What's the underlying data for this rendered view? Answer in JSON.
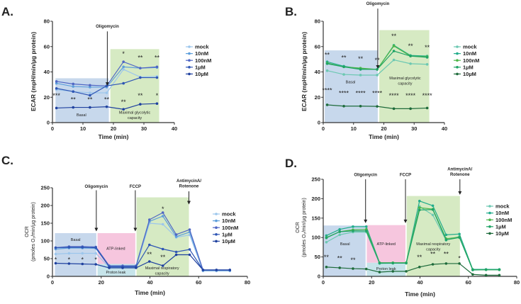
{
  "chart_data": [
    {
      "panel": "A.",
      "type": "line",
      "xlabel": "Time (min)",
      "ylabel": "ECAR (mpH/min/µg protein)",
      "xlim": [
        0,
        40
      ],
      "ylim": [
        0,
        80
      ],
      "xticks": [
        0,
        10,
        20,
        30,
        40
      ],
      "yticks": [
        0,
        20,
        40,
        60,
        80
      ],
      "legend": "right",
      "x": [
        1.3,
        6.8,
        12.3,
        17.8,
        23.3,
        28.8,
        34.3
      ],
      "series": [
        {
          "name": "mock",
          "color": "#9cc6ec",
          "values": [
            26,
            24.5,
            23.5,
            23.5,
            42,
            36,
            36.5
          ]
        },
        {
          "name": "10nM",
          "color": "#5d9edb",
          "values": [
            31,
            28.5,
            28,
            28,
            44,
            43,
            43.5
          ]
        },
        {
          "name": "100nM",
          "color": "#4f66c4",
          "values": [
            32.5,
            30.5,
            29.5,
            29,
            48,
            43,
            44
          ]
        },
        {
          "name": "1µM",
          "color": "#2e55b4",
          "values": [
            27,
            24.5,
            21.5,
            29,
            31,
            35.5,
            35.5
          ]
        },
        {
          "name": "10µM",
          "color": "#1f419f",
          "values": [
            11.5,
            12,
            12,
            12.5,
            10.5,
            14.5,
            15
          ]
        }
      ],
      "regions": [
        {
          "label": [
            "Basal"
          ],
          "x": [
            1,
            18.5
          ],
          "y": [
            0,
            35
          ],
          "color": "#c7d8ec",
          "lx": 9.5,
          "ly": 5
        },
        {
          "label": [
            "Maximal glycolytic",
            "capacity"
          ],
          "x": [
            19,
            35
          ],
          "y": [
            0,
            58
          ],
          "color": "#d6eac3",
          "lx": 27,
          "ly": 7
        }
      ],
      "injections": [
        {
          "label": [
            "Oligomycin"
          ],
          "x": 18,
          "ly": 75,
          "y1": 72,
          "y2": 29
        }
      ],
      "annotations": [
        {
          "x": 23.3,
          "y": 56,
          "text": "*"
        },
        {
          "x": 28.8,
          "y": 53,
          "text": "**"
        },
        {
          "x": 34.3,
          "y": 53,
          "text": "**"
        },
        {
          "x": 1.3,
          "y": 23,
          "text": "***"
        },
        {
          "x": 6.8,
          "y": 20,
          "text": "**"
        },
        {
          "x": 12.3,
          "y": 20,
          "text": "**"
        },
        {
          "x": 17.8,
          "y": 20,
          "text": "**"
        },
        {
          "x": 23.3,
          "y": 18,
          "text": "**"
        },
        {
          "x": 28.8,
          "y": 23,
          "text": "**"
        },
        {
          "x": 34.3,
          "y": 23,
          "text": "*"
        }
      ]
    },
    {
      "panel": "B.",
      "type": "line",
      "xlabel": "Time (min)",
      "ylabel": "ECAR (mpH/min/µg protein)",
      "xlim": [
        0,
        40
      ],
      "ylim": [
        0,
        80
      ],
      "xticks": [
        0,
        10,
        20,
        30,
        40
      ],
      "yticks": [
        0,
        20,
        40,
        60,
        80
      ],
      "legend": "right",
      "x": [
        1.3,
        6.8,
        12.3,
        17.8,
        23.3,
        28.8,
        34.3
      ],
      "series": [
        {
          "name": "mock",
          "color": "#6cc8b2",
          "values": [
            41,
            38,
            37.5,
            37.5,
            49.5,
            46.5,
            46
          ]
        },
        {
          "name": "10nM",
          "color": "#22ad8c",
          "values": [
            48,
            44.5,
            42.5,
            42,
            61,
            53,
            52.5
          ]
        },
        {
          "name": "100nM",
          "color": "#4db648",
          "values": [
            47,
            44,
            43,
            42,
            60.5,
            52.5,
            52
          ]
        },
        {
          "name": "1µM",
          "color": "#1fa366",
          "values": [
            46.5,
            44,
            42,
            42,
            56.5,
            52.5,
            51.5
          ]
        },
        {
          "name": "10µM",
          "color": "#1e6b3b",
          "values": [
            14,
            13,
            13,
            12.8,
            11,
            11,
            11.5
          ]
        }
      ],
      "regions": [
        {
          "label": [
            "Basal"
          ],
          "x": [
            0.5,
            18
          ],
          "y": [
            0,
            57
          ],
          "color": "#c7d8ec",
          "lx": 9,
          "ly": 31
        },
        {
          "label": [
            "Maximal glycolytic",
            "capacity"
          ],
          "x": [
            18.5,
            35
          ],
          "y": [
            0,
            73
          ],
          "color": "#d6eac3",
          "lx": 27,
          "ly": 34
        }
      ],
      "injections": [
        {
          "label": [
            "Oligomycin"
          ],
          "x": 18,
          "ly": 93,
          "y1": 90,
          "y2": 42.5
        }
      ],
      "annotations": [
        {
          "x": 1.3,
          "y": 55,
          "text": "**"
        },
        {
          "x": 6.8,
          "y": 53,
          "text": "**"
        },
        {
          "x": 12.3,
          "y": 52,
          "text": "**"
        },
        {
          "x": 17.8,
          "y": 51,
          "text": "**"
        },
        {
          "x": 23.3,
          "y": 70,
          "text": "**"
        },
        {
          "x": 28.8,
          "y": 62,
          "text": "**"
        },
        {
          "x": 34.3,
          "y": 61,
          "text": "**"
        },
        {
          "x": 1.3,
          "y": 27,
          "text": "****"
        },
        {
          "x": 6.8,
          "y": 25,
          "text": "****"
        },
        {
          "x": 12.3,
          "y": 25,
          "text": "****"
        },
        {
          "x": 17.8,
          "y": 25,
          "text": "****"
        },
        {
          "x": 23.3,
          "y": 23,
          "text": "****"
        },
        {
          "x": 28.8,
          "y": 23,
          "text": "****"
        },
        {
          "x": 34.3,
          "y": 23,
          "text": "****"
        }
      ]
    },
    {
      "panel": "C.",
      "type": "line",
      "xlabel": "Time (min)",
      "ylabel": [
        "OCR",
        "(pmoles O₂/min/µg protein)"
      ],
      "xlim": [
        0,
        80
      ],
      "ylim": [
        0,
        250
      ],
      "xticks": [
        0,
        20,
        40,
        60,
        80
      ],
      "yticks": [
        0,
        50,
        100,
        150,
        200,
        250
      ],
      "legend": "right",
      "x": [
        1.3,
        6.8,
        12.3,
        17.8,
        23.3,
        28.8,
        34.3,
        39.8,
        45.3,
        50.8,
        56.3,
        61.8,
        67.3,
        72.8
      ],
      "series": [
        {
          "name": "mock",
          "color": "#9cc6ec",
          "values": [
            63,
            65,
            65,
            65,
            25,
            25,
            25,
            150,
            147,
            110,
            117,
            15,
            15,
            15
          ]
        },
        {
          "name": "10nM",
          "color": "#5d9edb",
          "values": [
            77,
            80,
            80,
            79,
            28,
            28,
            28,
            155,
            170,
            112,
            125,
            17,
            17,
            17
          ]
        },
        {
          "name": "100nM",
          "color": "#4f66c4",
          "values": [
            81,
            84,
            84,
            83,
            30,
            30,
            30,
            160,
            180,
            118,
            132,
            18,
            18,
            18
          ]
        },
        {
          "name": "1µM",
          "color": "#2e55b4",
          "values": [
            81,
            82,
            82,
            81,
            27,
            27,
            27,
            89,
            77,
            69,
            76,
            18,
            18,
            18
          ]
        },
        {
          "name": "10µM",
          "color": "#1f419f",
          "values": [
            37,
            36,
            35,
            34,
            24,
            24,
            24,
            42,
            30,
            61,
            61,
            18,
            18,
            18
          ]
        }
      ],
      "regions": [
        {
          "label": [
            "Basal"
          ],
          "x": [
            1,
            18
          ],
          "y": [
            0,
            122
          ],
          "color": "#c7d8ec",
          "lx": 9.5,
          "ly": 100
        },
        {
          "label": [
            "ATP-linked"
          ],
          "x": [
            18.5,
            34
          ],
          "y": [
            35,
            122
          ],
          "color": "#f6c6de",
          "lx": 26,
          "ly": 75
        },
        {
          "label": [
            "Proton leak"
          ],
          "x": [
            18.5,
            34
          ],
          "y": [
            0,
            35
          ],
          "color": "#c6e4ea",
          "lx": 26,
          "ly": 8
        },
        {
          "label": [
            "Maximal respiratory",
            "capacity"
          ],
          "x": [
            34.5,
            56
          ],
          "y": [
            0,
            223
          ],
          "color": "#d6eac3",
          "lx": 45,
          "ly": 20
        }
      ],
      "injections": [
        {
          "label": [
            "Oligomycin"
          ],
          "x": 18,
          "ly": 250,
          "y1": 243,
          "y2": 127
        },
        {
          "label": [
            "FCCP"
          ],
          "x": 34,
          "ly": 250,
          "y1": 243,
          "y2": 127
        },
        {
          "label": [
            "AntimycinA/",
            "Rotenone"
          ],
          "x": 56,
          "ly": 266,
          "y1": 240,
          "y2": 203
        }
      ],
      "annotations": [
        {
          "x": 1.3,
          "y": 53,
          "text": "*"
        },
        {
          "x": 6.8,
          "y": 53,
          "text": "*"
        },
        {
          "x": 12.3,
          "y": 53,
          "text": "*"
        },
        {
          "x": 17.8,
          "y": 53,
          "text": "*"
        },
        {
          "x": 45.3,
          "y": 196,
          "text": "*"
        },
        {
          "x": 39.8,
          "y": 68,
          "text": "**"
        },
        {
          "x": 45.3,
          "y": 60,
          "text": "**"
        }
      ]
    },
    {
      "panel": "D.",
      "type": "line",
      "xlabel": "Time (min)",
      "ylabel": [
        "OCR",
        "(pmoles O₂/min/µg protein)"
      ],
      "xlim": [
        0,
        80
      ],
      "ylim": [
        0,
        250
      ],
      "xticks": [
        0,
        20,
        40,
        60,
        80
      ],
      "yticks": [
        0,
        50,
        100,
        150,
        200,
        250
      ],
      "legend": "right",
      "x": [
        1.3,
        6.8,
        12.3,
        17.8,
        23.3,
        28.8,
        34.3,
        39.8,
        45.3,
        50.8,
        56.3,
        61.8,
        67.3,
        72.8
      ],
      "series": [
        {
          "name": "mock",
          "color": "#6cc8b2",
          "values": [
            88,
            107,
            114,
            114,
            33,
            34,
            34,
            180,
            158,
            93,
            103,
            16,
            17,
            17
          ]
        },
        {
          "name": "10nM",
          "color": "#22ad8c",
          "values": [
            105,
            121,
            128,
            128,
            35,
            35,
            35,
            194,
            182,
            107,
            109,
            18,
            18,
            18
          ]
        },
        {
          "name": "100nM",
          "color": "#4db648",
          "values": [
            100,
            115,
            120,
            121,
            35,
            35,
            35,
            177,
            173,
            97,
            101,
            17,
            17,
            17
          ]
        },
        {
          "name": "1µM",
          "color": "#1fa366",
          "values": [
            99,
            115,
            117,
            117,
            34,
            34,
            34,
            171,
            172,
            94,
            100,
            17,
            17,
            17
          ]
        },
        {
          "name": "10µM",
          "color": "#1e6b3b",
          "values": [
            24,
            22,
            20,
            19,
            11,
            13,
            13,
            24,
            31,
            33,
            33,
            5,
            3,
            3
          ]
        }
      ],
      "regions": [
        {
          "label": [
            "Basal"
          ],
          "x": [
            0,
            17.5
          ],
          "y": [
            0,
            131
          ],
          "color": "#c7d8ec",
          "lx": 9,
          "ly": 80
        },
        {
          "label": [
            "ATP-linked"
          ],
          "x": [
            18,
            34
          ],
          "y": [
            35,
            132
          ],
          "color": "#f6c6de",
          "lx": 26,
          "ly": 80
        },
        {
          "label": [
            "Proton leak"
          ],
          "x": [
            18,
            34
          ],
          "y": [
            0,
            35
          ],
          "color": "#c6e4ea",
          "lx": 26,
          "ly": 16
        },
        {
          "label": [
            "Maximal respiratory",
            "capacity"
          ],
          "x": [
            34.5,
            56.5
          ],
          "y": [
            0,
            207
          ],
          "color": "#d6eac3",
          "lx": 45.5,
          "ly": 80
        }
      ],
      "injections": [
        {
          "label": [
            "Oligomycin"
          ],
          "x": 17.5,
          "ly": 258,
          "y1": 250,
          "y2": 137
        },
        {
          "label": [
            "FCCP"
          ],
          "x": 34,
          "ly": 258,
          "y1": 250,
          "y2": 137
        },
        {
          "label": [
            "AntimycinA/",
            "Rotenone"
          ],
          "x": 56.5,
          "ly": 273,
          "y1": 250,
          "y2": 210
        }
      ],
      "annotations": [
        {
          "x": 1.3,
          "y": 55,
          "text": "**"
        },
        {
          "x": 6.8,
          "y": 52,
          "text": "**"
        },
        {
          "x": 12.3,
          "y": 47,
          "text": "**"
        },
        {
          "x": 39.8,
          "y": 55,
          "text": "**"
        },
        {
          "x": 45.3,
          "y": 63,
          "text": "**"
        },
        {
          "x": 50.8,
          "y": 63,
          "text": "**"
        },
        {
          "x": 56.3,
          "y": 52,
          "text": "*"
        }
      ]
    }
  ]
}
